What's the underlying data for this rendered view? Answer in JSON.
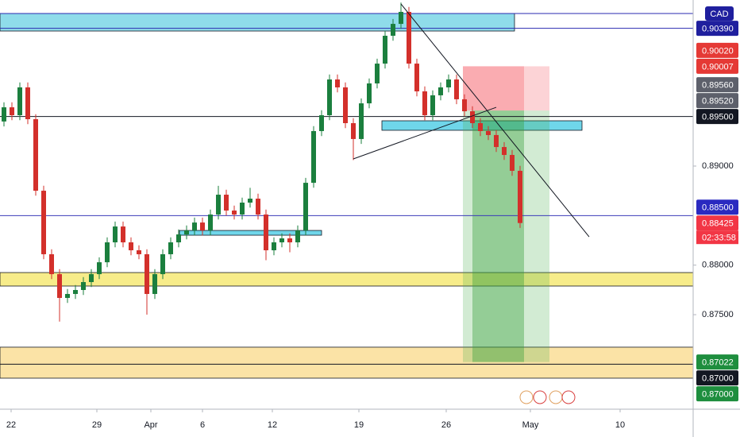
{
  "chart_data": {
    "type": "candlestick",
    "symbol_badge": "CAD",
    "xlim": [
      -0.5,
      86.8
    ],
    "ylim": [
      0.86546,
      0.90676
    ],
    "xticks": [
      {
        "value": 0.9,
        "label": "22"
      },
      {
        "value": 11.7,
        "label": "29"
      },
      {
        "value": 18.5,
        "label": "Apr"
      },
      {
        "value": 25,
        "label": "6"
      },
      {
        "value": 33.8,
        "label": "12"
      },
      {
        "value": 44.7,
        "label": "19"
      },
      {
        "value": 55.7,
        "label": "26"
      },
      {
        "value": 66.3,
        "label": "May"
      },
      {
        "value": 77.6,
        "label": "10"
      }
    ],
    "yticks": [
      {
        "value": 0.89,
        "label": "0.89000"
      },
      {
        "value": 0.88,
        "label": "0.88000"
      },
      {
        "value": 0.875,
        "label": "0.87500"
      }
    ],
    "up_color": "#1b7f3e",
    "down_color": "#d3302b",
    "open": [
      0.8945,
      0.89593,
      0.89513,
      0.89794,
      0.89473,
      0.88751,
      0.8811,
      0.87909,
      0.87669,
      0.87709,
      0.87749,
      0.87829,
      0.87909,
      0.88029,
      0.8823,
      0.8839,
      0.8823,
      0.8815,
      0.8811,
      0.87709,
      0.87909,
      0.8811,
      0.8823,
      0.8831,
      0.8835,
      0.8843,
      0.8835,
      0.88511,
      0.88711,
      0.88551,
      0.88511,
      0.88631,
      0.88671,
      0.88511,
      0.8815,
      0.8823,
      0.8827,
      0.8823,
      0.8835,
      0.88831,
      0.89353,
      0.89513,
      0.89874,
      0.89794,
      0.89433,
      0.89273,
      0.89633,
      0.89834,
      0.90034,
      0.90315,
      0.90435,
      0.90556,
      0.90034,
      0.89754,
      0.89513,
      0.89714,
      0.89794,
      0.89874,
      0.89674,
      0.89553,
      0.89433,
      0.89353,
      0.89313,
      0.89192,
      0.89112,
      0.88952
    ],
    "high": [
      0.89643,
      0.89643,
      0.89844,
      0.89844,
      0.89523,
      0.88801,
      0.8816,
      0.87959,
      0.87759,
      0.87799,
      0.87879,
      0.87959,
      0.88079,
      0.8828,
      0.8844,
      0.8844,
      0.8828,
      0.882,
      0.8816,
      0.87959,
      0.8816,
      0.8828,
      0.8836,
      0.884,
      0.8848,
      0.8848,
      0.88561,
      0.888,
      0.88761,
      0.88601,
      0.88681,
      0.8878,
      0.88721,
      0.88561,
      0.8828,
      0.8832,
      0.8832,
      0.884,
      0.88881,
      0.89403,
      0.89563,
      0.89924,
      0.89924,
      0.89844,
      0.89483,
      0.89683,
      0.89884,
      0.90084,
      0.90365,
      0.90485,
      0.9065,
      0.90606,
      0.90084,
      0.89804,
      0.89764,
      0.89844,
      0.89924,
      0.89924,
      0.89724,
      0.89603,
      0.89483,
      0.89403,
      0.89363,
      0.89242,
      0.89162,
      0.89002
    ],
    "low": [
      0.894,
      0.89463,
      0.89463,
      0.89423,
      0.88701,
      0.8806,
      0.87859,
      0.8743,
      0.87619,
      0.87659,
      0.87699,
      0.87779,
      0.87859,
      0.87979,
      0.8818,
      0.8818,
      0.881,
      0.8806,
      0.875,
      0.87659,
      0.87859,
      0.8806,
      0.8818,
      0.8826,
      0.883,
      0.883,
      0.883,
      0.88461,
      0.88501,
      0.88461,
      0.88461,
      0.88581,
      0.88461,
      0.8805,
      0.881,
      0.8818,
      0.8813,
      0.8818,
      0.883,
      0.88781,
      0.89303,
      0.89463,
      0.89744,
      0.89383,
      0.8906,
      0.89223,
      0.89583,
      0.89784,
      0.89984,
      0.90265,
      0.90385,
      0.89984,
      0.89704,
      0.89463,
      0.89463,
      0.89664,
      0.89744,
      0.89624,
      0.89503,
      0.89383,
      0.89303,
      0.89263,
      0.89142,
      0.89062,
      0.88902,
      0.88375
    ],
    "close": [
      0.89593,
      0.89513,
      0.89794,
      0.89473,
      0.88751,
      0.8811,
      0.87909,
      0.87669,
      0.87709,
      0.87749,
      0.87829,
      0.87909,
      0.88029,
      0.8823,
      0.8839,
      0.8823,
      0.8815,
      0.8811,
      0.87709,
      0.87909,
      0.8811,
      0.8823,
      0.8831,
      0.8835,
      0.8843,
      0.8835,
      0.88511,
      0.88711,
      0.88551,
      0.88511,
      0.88631,
      0.88671,
      0.88511,
      0.8815,
      0.8823,
      0.8827,
      0.8823,
      0.8835,
      0.88831,
      0.89353,
      0.89513,
      0.89874,
      0.89794,
      0.89433,
      0.89273,
      0.89633,
      0.89834,
      0.90034,
      0.90315,
      0.90435,
      0.90556,
      0.90034,
      0.89754,
      0.89513,
      0.89714,
      0.89794,
      0.89874,
      0.89674,
      0.89553,
      0.89433,
      0.89353,
      0.89313,
      0.89192,
      0.89112,
      0.88952,
      0.88425
    ],
    "zones": [
      {
        "from": 0.9054,
        "to": 0.90363,
        "x": [
          -0.5,
          64.3
        ],
        "color": "#8fdcea"
      },
      {
        "from": 0.89457,
        "to": 0.89361,
        "x": [
          47.6,
          72.8
        ],
        "color": "#6fd6ea"
      },
      {
        "from": 0.8835,
        "to": 0.88302,
        "x": [
          22.1,
          40
        ],
        "color": "#6fd6ea"
      },
      {
        "from": 0.87925,
        "to": 0.87789,
        "color": "#f7ec8a"
      },
      {
        "from": 0.87172,
        "to": 0.86859,
        "color": "#fbe3a6"
      }
    ],
    "lines": [
      {
        "value": 0.9054,
        "color": "#2a2ab0"
      },
      {
        "value": 0.9039,
        "color": "#2a2ab0"
      },
      {
        "value": 0.895,
        "color": "#131722"
      },
      {
        "value": 0.885,
        "color": "#3b3bb8"
      },
      {
        "value": 0.87,
        "color": "#131722"
      }
    ],
    "trendlines": [
      {
        "x": [
          50,
          73.7
        ],
        "y": [
          0.90636,
          0.88286
        ],
        "color": "#131722"
      },
      {
        "x": [
          44,
          62
        ],
        "y": [
          0.89072,
          0.89593
        ],
        "color": "#131722"
      }
    ],
    "position": {
      "entry": 0.8956,
      "stop": 0.90007,
      "target": 0.87022,
      "x": [
        57.8,
        68.7
      ]
    },
    "price_labels": [
      {
        "value": 0.9039,
        "label": "0.90390",
        "color": "#1f1f9e"
      },
      {
        "value": 0.9002,
        "label": "0.90020",
        "color": "#e53935"
      },
      {
        "value": 0.90007,
        "label": "0.90007",
        "color": "#e53935"
      },
      {
        "value": 0.8956,
        "label": "0.89560",
        "color": "#5d606b"
      },
      {
        "value": 0.8952,
        "label": "0.89520",
        "color": "#5d606b"
      },
      {
        "value": 0.895,
        "label": "0.89500",
        "color": "#131722"
      },
      {
        "value": 0.885,
        "label": "0.88500",
        "color": "#2a2ac0"
      },
      {
        "value": 0.88425,
        "label": "0.88425",
        "color": "#f23645"
      },
      {
        "value": 0.87022,
        "label": "0.87022",
        "color": "#1e8e3e"
      },
      {
        "value": 0.87,
        "label": "0.87000",
        "color": "#131722"
      },
      {
        "value": 0.87,
        "label": "0.87000",
        "color": "#1e8e3e"
      }
    ],
    "countdown": "02:33:58"
  }
}
